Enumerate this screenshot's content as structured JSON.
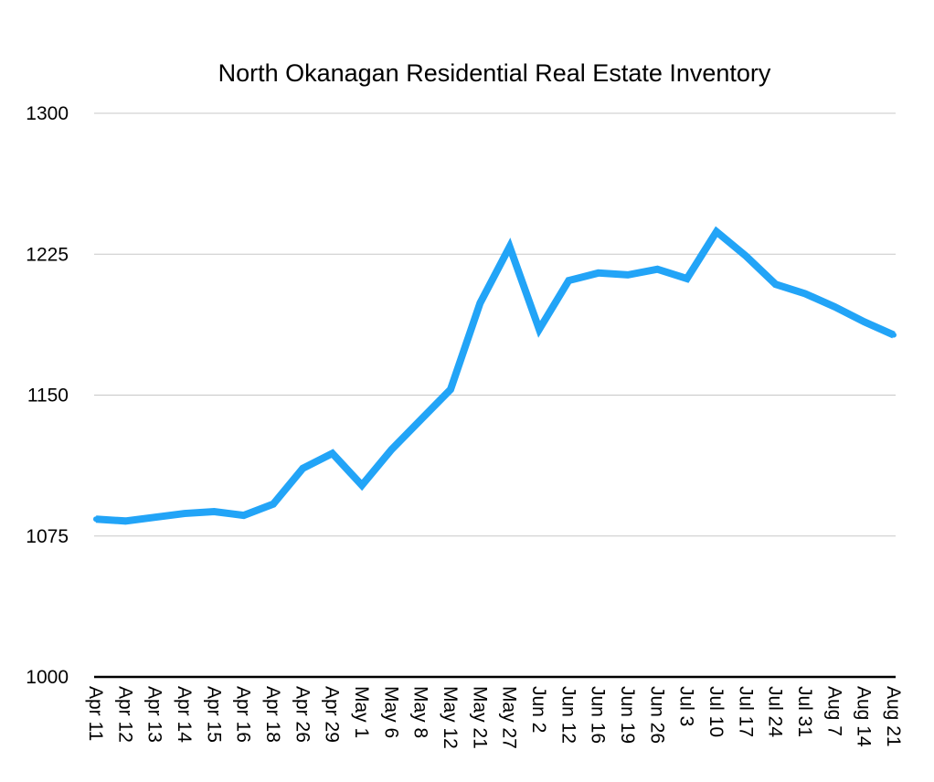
{
  "chart_data": {
    "type": "line",
    "title": "North Okanagan Residential Real Estate Inventory",
    "xlabel": "",
    "ylabel": "",
    "ylim": [
      1000,
      1300
    ],
    "yticks": [
      1000,
      1075,
      1150,
      1225,
      1300
    ],
    "grid": true,
    "legend": "none",
    "categories": [
      "Apr 11",
      "Apr 12",
      "Apr 13",
      "Apr 14",
      "Apr 15",
      "Apr 16",
      "Apr 18",
      "Apr 26",
      "Apr 29",
      "May 1",
      "May 6",
      "May 8",
      "May 12",
      "May 21",
      "May 27",
      "Jun 2",
      "Jun 12",
      "Jun 16",
      "Jun 19",
      "Jun 26",
      "Jul 3",
      "Jul 10",
      "Jul 17",
      "Jul 24",
      "Jul 31",
      "Aug 7",
      "Aug 14",
      "Aug 21"
    ],
    "series": [
      {
        "values": [
          1084,
          1083,
          1085,
          1087,
          1088,
          1086,
          1092,
          1111,
          1119,
          1102,
          1121,
          1137,
          1153,
          1199,
          1229,
          1185,
          1211,
          1215,
          1214,
          1217,
          1212,
          1237,
          1224,
          1209,
          1204,
          1197,
          1189,
          1182
        ],
        "color": "#22a4f7"
      }
    ]
  }
}
